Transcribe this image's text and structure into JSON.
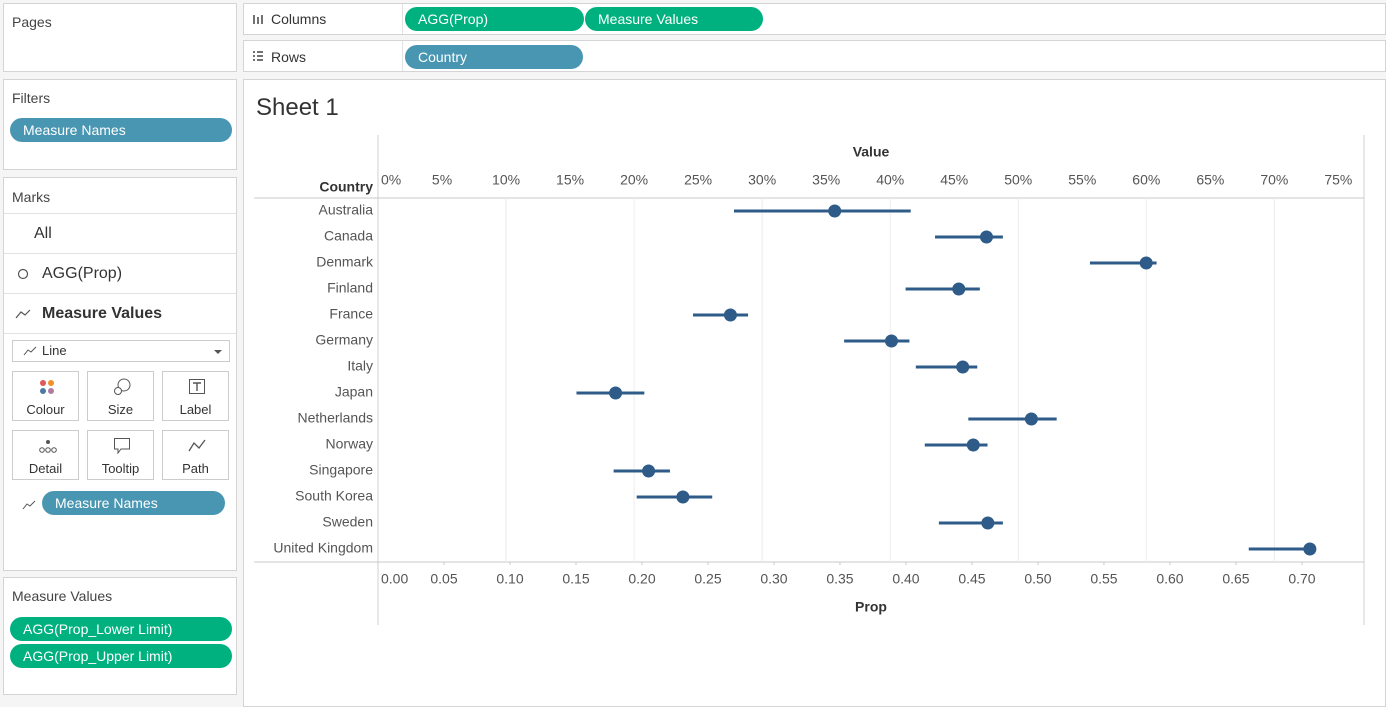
{
  "pages": {
    "title": "Pages"
  },
  "filters": {
    "title": "Filters",
    "pills": [
      "Measure Names"
    ]
  },
  "marks": {
    "title": "Marks",
    "layers": [
      "All",
      "AGG(Prop)",
      "Measure Values"
    ],
    "mark_type": "Line",
    "buttons": [
      "Colour",
      "Size",
      "Label",
      "Detail",
      "Tooltip",
      "Path"
    ],
    "pills": [
      "Measure Names"
    ]
  },
  "measure_values": {
    "title": "Measure Values",
    "pills": [
      "AGG(Prop_Lower Limit)",
      "AGG(Prop_Upper Limit)"
    ]
  },
  "columns": {
    "label": "Columns",
    "pills": [
      "AGG(Prop)",
      "Measure Values"
    ]
  },
  "rows": {
    "label": "Rows",
    "pills": [
      "Country"
    ]
  },
  "sheet": {
    "title": "Sheet 1"
  },
  "chart_data": {
    "type": "dot_range",
    "y_label": "Country",
    "x_label": "Prop",
    "x2_label": "Value",
    "color": "#2e5b87",
    "categories": [
      "Australia",
      "Canada",
      "Denmark",
      "Finland",
      "France",
      "Germany",
      "Italy",
      "Japan",
      "Netherlands",
      "Norway",
      "Singapore",
      "South Korea",
      "Sweden",
      "United Kingdom"
    ],
    "values": [
      0.346,
      0.461,
      0.582,
      0.44,
      0.267,
      0.389,
      0.443,
      0.18,
      0.495,
      0.451,
      0.205,
      0.231,
      0.462,
      0.706
    ],
    "lower": [
      27.8,
      43.5,
      55.6,
      41.2,
      24.6,
      36.4,
      42.0,
      15.5,
      46.1,
      42.7,
      18.4,
      20.2,
      43.8,
      68.0
    ],
    "upper": [
      41.6,
      48.8,
      60.8,
      47.0,
      28.9,
      41.5,
      46.8,
      20.8,
      53.0,
      47.6,
      22.8,
      26.1,
      48.8,
      72.8
    ],
    "xlim": [
      0,
      0.747
    ],
    "xticks": [
      {
        "value": 0,
        "label": "0.00"
      },
      0.05,
      {
        "value": 0.1,
        "label": "0.10"
      },
      0.15,
      {
        "value": 0.2,
        "label": "0.20"
      },
      0.25,
      {
        "value": 0.3,
        "label": "0.30"
      },
      0.35,
      {
        "value": 0.4,
        "label": "0.40"
      },
      0.45,
      {
        "value": 0.5,
        "label": "0.50"
      },
      0.55,
      {
        "value": 0.6,
        "label": "0.60"
      },
      0.65,
      {
        "value": 0.7,
        "label": "0.70"
      }
    ],
    "x2lim": [
      0,
      77
    ],
    "x2ticks": [
      {
        "value": 0,
        "label": "0%"
      },
      {
        "value": 5,
        "label": "5%"
      },
      {
        "value": 10,
        "label": "10%"
      },
      {
        "value": 15,
        "label": "15%"
      },
      {
        "value": 20,
        "label": "20%"
      },
      {
        "value": 25,
        "label": "25%"
      },
      {
        "value": 30,
        "label": "30%"
      },
      {
        "value": 35,
        "label": "35%"
      },
      {
        "value": 40,
        "label": "40%"
      },
      {
        "value": 45,
        "label": "45%"
      },
      {
        "value": 50,
        "label": "50%"
      },
      {
        "value": 55,
        "label": "55%"
      },
      {
        "value": 60,
        "label": "60%"
      },
      {
        "value": 65,
        "label": "65%"
      },
      {
        "value": 70,
        "label": "70%"
      },
      {
        "value": 75,
        "label": "75%"
      }
    ],
    "grid": true
  }
}
